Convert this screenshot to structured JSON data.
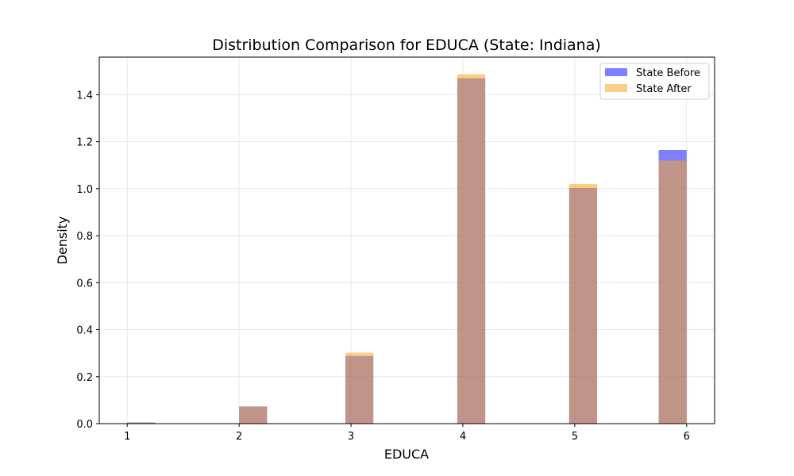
{
  "chart_data": {
    "type": "bar",
    "title": "Distribution Comparison for EDUCA (State: Indiana)",
    "xlabel": "EDUCA",
    "ylabel": "Density",
    "xlim": [
      0.75,
      6.25
    ],
    "ylim": [
      0,
      1.56
    ],
    "x_ticks": [
      1,
      2,
      3,
      4,
      5,
      6
    ],
    "y_ticks": [
      0.0,
      0.2,
      0.4,
      0.6,
      0.8,
      1.0,
      1.2,
      1.4
    ],
    "y_tick_labels": [
      "0.0",
      "0.2",
      "0.4",
      "0.6",
      "0.8",
      "1.0",
      "1.2",
      "1.4"
    ],
    "bin_width": 0.25,
    "grid": true,
    "legend_position": "top-right",
    "series": [
      {
        "name": "State Before",
        "color": "#0000ff",
        "opacity": 0.5,
        "bins": [
          {
            "start": 1.0,
            "value": 0.005
          },
          {
            "start": 2.0,
            "value": 0.073
          },
          {
            "start": 2.95,
            "value": 0.288
          },
          {
            "start": 3.95,
            "value": 1.47
          },
          {
            "start": 4.95,
            "value": 1.003
          },
          {
            "start": 5.75,
            "value": 1.165
          }
        ]
      },
      {
        "name": "State After",
        "color": "#f5a623",
        "opacity": 0.55,
        "bins": [
          {
            "start": 1.0,
            "value": 0.004
          },
          {
            "start": 2.0,
            "value": 0.072
          },
          {
            "start": 2.95,
            "value": 0.302
          },
          {
            "start": 3.95,
            "value": 1.487
          },
          {
            "start": 4.95,
            "value": 1.02
          },
          {
            "start": 5.75,
            "value": 1.12
          }
        ]
      }
    ]
  }
}
